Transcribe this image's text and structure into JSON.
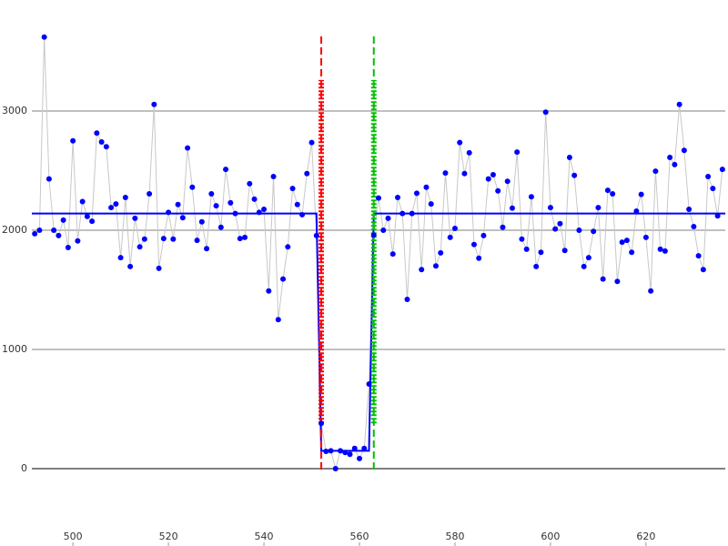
{
  "chart_data": {
    "type": "line",
    "xlim": [
      491.4,
      636.6
    ],
    "ylim": [
      -649,
      3931
    ],
    "xticks": [
      500,
      520,
      540,
      560,
      580,
      600,
      620
    ],
    "yticks": [
      0,
      1000,
      2000,
      3000
    ],
    "grid": true,
    "series": [
      {
        "color": "#0000ff",
        "line_color": "#c8c8c8",
        "x": [
          492,
          493,
          494,
          495,
          496,
          497,
          498,
          499,
          500,
          501,
          502,
          503,
          504,
          505,
          506,
          507,
          508,
          509,
          510,
          511,
          512,
          513,
          514,
          515,
          516,
          517,
          518,
          519,
          520,
          521,
          522,
          523,
          524,
          525,
          526,
          527,
          528,
          529,
          530,
          531,
          532,
          533,
          534,
          535,
          536,
          537,
          538,
          539,
          540,
          541,
          542,
          543,
          544,
          545,
          546,
          547,
          548,
          549,
          550,
          551,
          552,
          553,
          554,
          555,
          556,
          557,
          558,
          559,
          560,
          561,
          562,
          563,
          564,
          565,
          566,
          567,
          568,
          569,
          570,
          571,
          572,
          573,
          574,
          575,
          576,
          577,
          578,
          579,
          580,
          581,
          582,
          583,
          584,
          585,
          586,
          587,
          588,
          589,
          590,
          591,
          592,
          593,
          594,
          595,
          596,
          597,
          598,
          599,
          600,
          601,
          602,
          603,
          604,
          605,
          606,
          607,
          608,
          609,
          610,
          611,
          612,
          613,
          614,
          615,
          616,
          617,
          618,
          619,
          620,
          621,
          622,
          623,
          624,
          625,
          626,
          627,
          628,
          629,
          630,
          631,
          632,
          633,
          634,
          635,
          636
        ],
        "values": [
          1970,
          2000,
          3620,
          2430,
          2000,
          1955,
          2085,
          1855,
          2750,
          1910,
          2240,
          2115,
          2075,
          2815,
          2740,
          2700,
          2190,
          2220,
          1770,
          2275,
          1695,
          2100,
          1860,
          1925,
          2305,
          3055,
          1680,
          1930,
          2150,
          1925,
          2215,
          2105,
          2690,
          2360,
          1915,
          2070,
          1845,
          2305,
          2205,
          2025,
          2510,
          2230,
          2140,
          1930,
          1940,
          2390,
          2260,
          2150,
          2175,
          1490,
          2450,
          1250,
          1590,
          1860,
          2350,
          2215,
          2130,
          2475,
          2735,
          1955,
          380,
          145,
          150,
          0,
          150,
          135,
          120,
          170,
          85,
          170,
          710,
          1960,
          2270,
          2000,
          2100,
          1800,
          2275,
          2140,
          1420,
          2140,
          2310,
          1670,
          2360,
          2220,
          1700,
          1810,
          2480,
          1940,
          2015,
          2735,
          2475,
          2650,
          1880,
          1765,
          1955,
          2430,
          2465,
          2330,
          2025,
          2410,
          2185,
          2655,
          1925,
          1840,
          2280,
          1695,
          1815,
          2990,
          2190,
          2010,
          2055,
          1830,
          2610,
          2460,
          2000,
          1695,
          1770,
          1990,
          2190,
          1590,
          2335,
          2305,
          1570,
          1900,
          1915,
          1815,
          2160,
          2300,
          1940,
          1490,
          2495,
          1840,
          1825,
          2610,
          2550,
          3055,
          2670,
          2175,
          2030,
          1785,
          1670,
          2450,
          2350,
          2120,
          2510
        ]
      }
    ],
    "fit": {
      "color": "#0000ff",
      "x": [
        491.4,
        551,
        552,
        562,
        563,
        636.6
      ],
      "values": [
        2140,
        2140,
        150,
        150,
        2140,
        2140
      ]
    },
    "markers": [
      {
        "x": 552,
        "color": "#ff0000",
        "range": [
          380,
          3260
        ]
      },
      {
        "x": 563,
        "color": "#00c000",
        "range": [
          380,
          3260
        ]
      }
    ]
  }
}
